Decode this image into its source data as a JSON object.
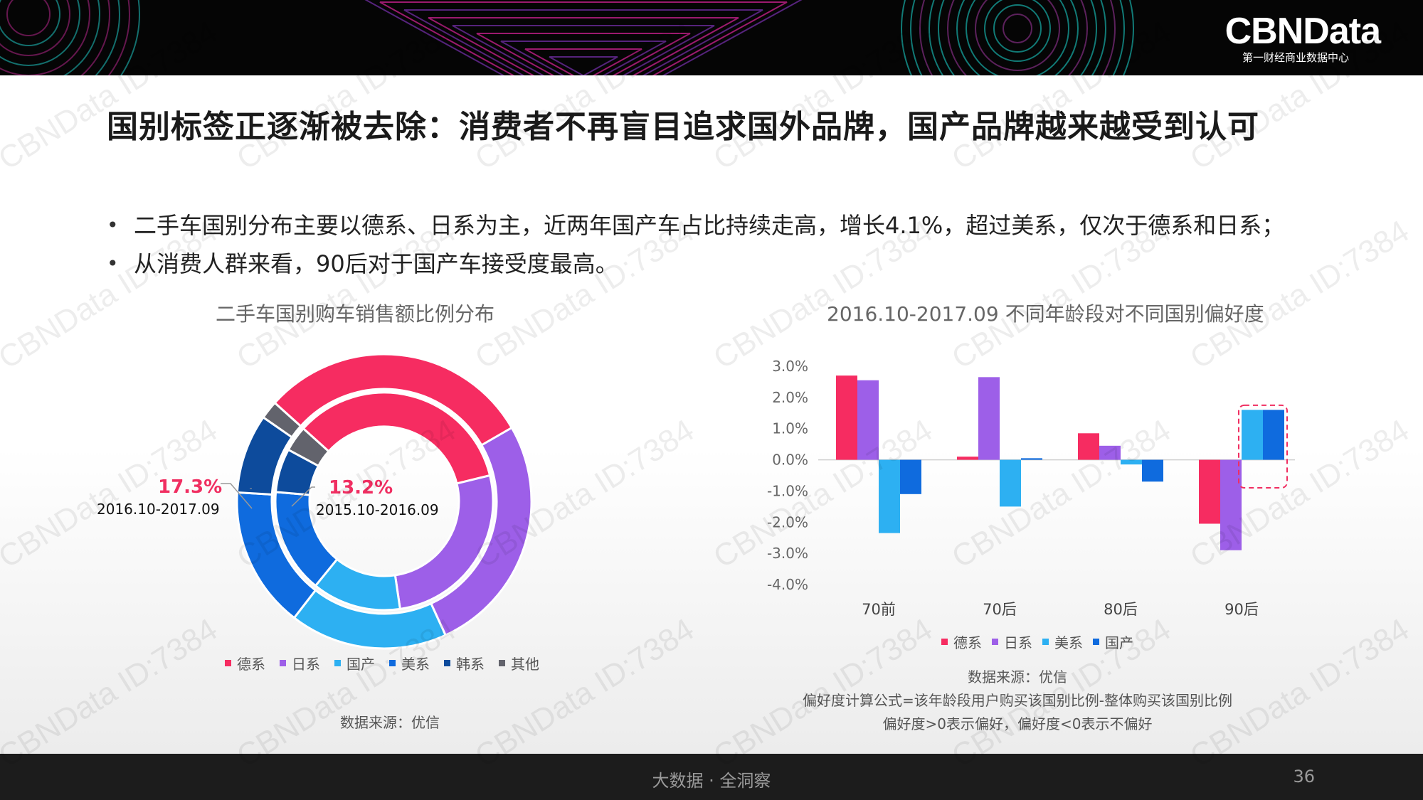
{
  "brand": {
    "name": "CBNData",
    "tagline": "第一财经商业数据中心"
  },
  "title": "国别标签正逐渐被去除：消费者不再盲目追求国外品牌，国产品牌越来越受到认可",
  "bullets": [
    "二手车国别分布主要以德系、日系为主，近两年国产车占比持续走高，增长4.1%，超过美系，仅次于德系和日系；",
    "从消费人群来看，90后对于国产车接受度最高。"
  ],
  "bullet_marker": "•",
  "watermark": "CBNData ID:7384",
  "footer": {
    "text": "大数据 · 全洞察",
    "page": "36"
  },
  "colors": {
    "german": "#f62c61",
    "japanese": "#9d5fe8",
    "domestic": "#2db0f2",
    "american": "#0f6bde",
    "korean": "#0d4b9c",
    "other": "#62636c"
  },
  "chart_data": [
    {
      "type": "pie",
      "subtype": "donut",
      "title": "二手车国别购车销售额比例分布",
      "categories": [
        "德系",
        "日系",
        "国产",
        "美系",
        "韩系",
        "其他"
      ],
      "series": [
        {
          "name": "2016.10-2017.09",
          "ring": "outer",
          "values": [
            30.0,
            26.5,
            17.3,
            15.5,
            8.7,
            2.0
          ]
        },
        {
          "name": "2015.10-2016.09",
          "ring": "inner",
          "values": [
            34.5,
            26.5,
            13.2,
            15.5,
            6.5,
            3.8
          ]
        }
      ],
      "labels": [
        {
          "value": "17.3%",
          "period": "2016.10-2017.09"
        },
        {
          "value": "13.2%",
          "period": "2015.10-2016.09"
        }
      ],
      "legend": "bottom",
      "source": "数据来源：优信"
    },
    {
      "type": "bar",
      "title": "2016.10-2017.09  不同年龄段对不同国别偏好度",
      "categories": [
        "70前",
        "70后",
        "80后",
        "90后"
      ],
      "series": [
        {
          "name": "德系",
          "values": [
            2.7,
            0.1,
            0.85,
            -2.05
          ]
        },
        {
          "name": "日系",
          "values": [
            2.55,
            2.65,
            0.45,
            -2.9
          ]
        },
        {
          "name": "美系",
          "values": [
            -2.35,
            -1.5,
            -0.15,
            1.6
          ]
        },
        {
          "name": "国产",
          "values": [
            -1.1,
            0.05,
            -0.7,
            1.6
          ]
        }
      ],
      "y_ticks": [
        "3.0%",
        "2.0%",
        "1.0%",
        "0.0%",
        "-1.0%",
        "-2.0%",
        "-3.0%",
        "-4.0%"
      ],
      "ylim": [
        -4.0,
        3.0
      ],
      "grid": false,
      "legend": "bottom",
      "highlight": {
        "category": "90后",
        "series": [
          "美系",
          "国产"
        ]
      },
      "notes": [
        "数据来源：优信",
        "偏好度计算公式=该年龄段用户购买该国别比例-整体购买该国别比例",
        "偏好度>0表示偏好，偏好度<0表示不偏好"
      ]
    }
  ]
}
